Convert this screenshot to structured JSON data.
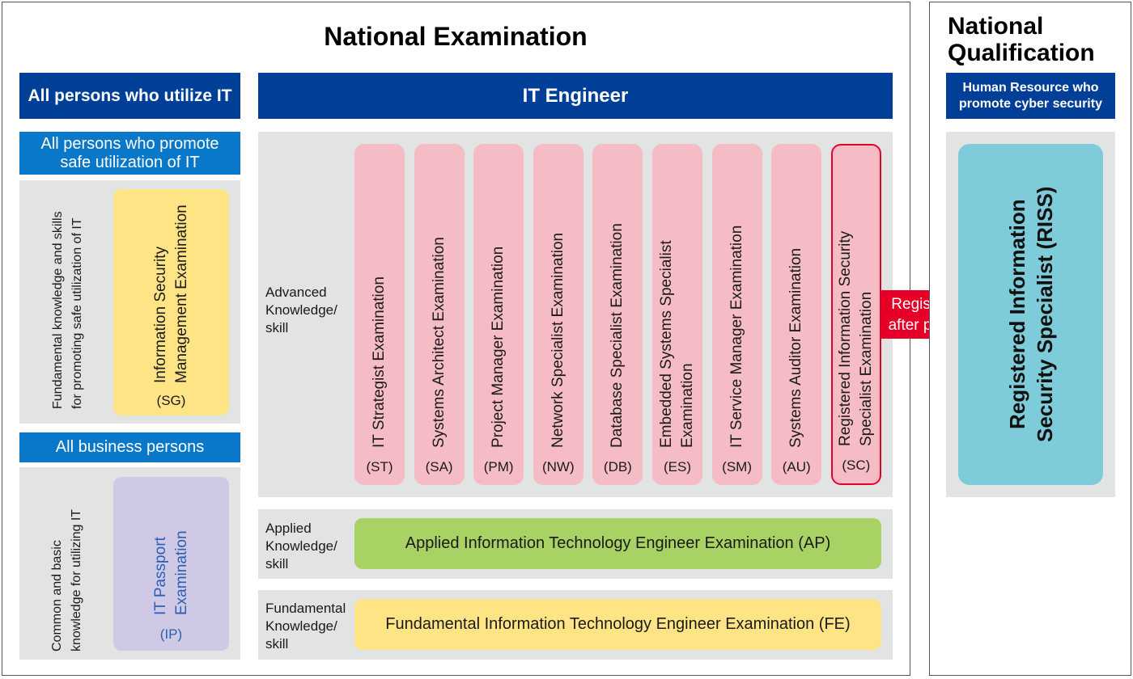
{
  "national_examination": {
    "title": "National Examination",
    "all_persons_utilize_it": "All persons who utilize IT",
    "it_engineer": "IT Engineer",
    "all_persons_promote": "All persons who promote safe utilization of IT",
    "fundamental_knowledge_promoting": "Fundamental knowledge and skills for promoting safe utilization of IT",
    "sg_exam": "Information Security Management Examination",
    "sg_abbr": "(SG)",
    "all_business_persons": "All business persons",
    "common_basic_knowledge": "Common and basic knowledge for utilizing IT",
    "ip_exam": "IT Passport Examination",
    "ip_abbr": "(IP)",
    "advanced_label": "Advanced Knowledge/ skill",
    "applied_label": "Applied Knowledge/ skill",
    "fundamental_label": "Fundamental Knowledge/ skill",
    "advanced_exams": [
      {
        "name": "IT Strategist Examination",
        "abbr": "(ST)"
      },
      {
        "name": "Systems Architect Examination",
        "abbr": "(SA)"
      },
      {
        "name": "Project Manager Examination",
        "abbr": "(PM)"
      },
      {
        "name": "Network Specialist Examination",
        "abbr": "(NW)"
      },
      {
        "name": "Database Specialist Examination",
        "abbr": "(DB)"
      },
      {
        "name": "Embedded Systems Specialist Examination",
        "abbr": "(ES)"
      },
      {
        "name": "IT Service Manager Examination",
        "abbr": "(SM)"
      },
      {
        "name": "Systems Auditor Examination",
        "abbr": "(AU)"
      },
      {
        "name": "Registered Information Security Specialist Examination",
        "abbr": "(SC)"
      }
    ],
    "applied_exam": "Applied Information Technology Engineer Examination (AP)",
    "fundamental_exam": "Fundamental Information Technology Engineer Examination (FE)"
  },
  "arrow": {
    "label_line1": "Registration",
    "label_line2": "after passing"
  },
  "national_qualification": {
    "title_line1": "National",
    "title_line2": "Qualification",
    "target_line1": "Human Resource who",
    "target_line2": "promote cyber security",
    "riss": "Registered Information Security Specialist (RISS)"
  },
  "colors": {
    "navy": "#003f98",
    "blue": "#0a78c8",
    "pink": "#f5bcc6",
    "red": "#e60028",
    "yellow": "#ffe486",
    "green": "#a8d264",
    "lavender": "#cfc9e6",
    "teal": "#7ecbd9"
  }
}
